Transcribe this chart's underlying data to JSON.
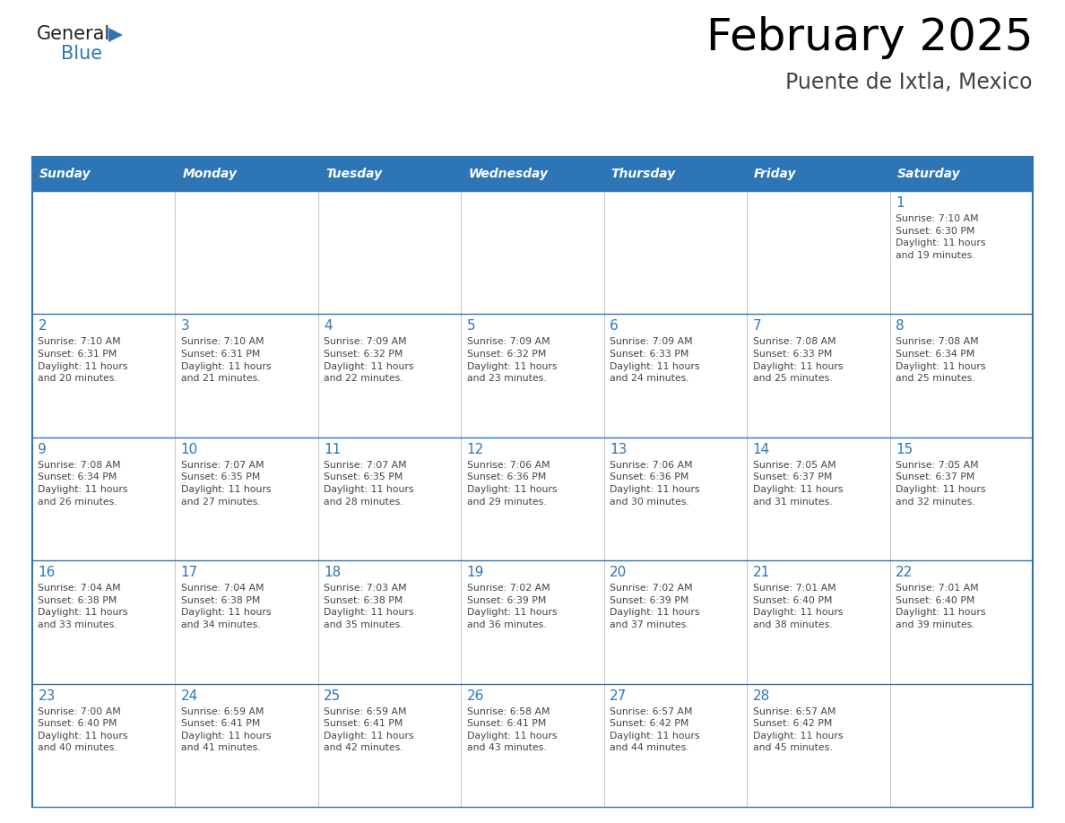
{
  "title": "February 2025",
  "subtitle": "Puente de Ixtla, Mexico",
  "days_of_week": [
    "Sunday",
    "Monday",
    "Tuesday",
    "Wednesday",
    "Thursday",
    "Friday",
    "Saturday"
  ],
  "header_bg": "#2E75B6",
  "header_text": "#FFFFFF",
  "cell_bg": "#FFFFFF",
  "border_color": "#2E75B6",
  "title_color": "#000000",
  "subtitle_color": "#444444",
  "day_number_color": "#2E75B6",
  "cell_text_color": "#444444",
  "logo_general_color": "#222222",
  "logo_blue_color": "#2E75B6",
  "figwidth": 11.88,
  "figheight": 9.18,
  "dpi": 100,
  "weeks": [
    [
      {
        "day": null,
        "sunrise": null,
        "sunset": null,
        "daylight": null
      },
      {
        "day": null,
        "sunrise": null,
        "sunset": null,
        "daylight": null
      },
      {
        "day": null,
        "sunrise": null,
        "sunset": null,
        "daylight": null
      },
      {
        "day": null,
        "sunrise": null,
        "sunset": null,
        "daylight": null
      },
      {
        "day": null,
        "sunrise": null,
        "sunset": null,
        "daylight": null
      },
      {
        "day": null,
        "sunrise": null,
        "sunset": null,
        "daylight": null
      },
      {
        "day": 1,
        "sunrise": "7:10 AM",
        "sunset": "6:30 PM",
        "daylight": "11 hours\nand 19 minutes."
      }
    ],
    [
      {
        "day": 2,
        "sunrise": "7:10 AM",
        "sunset": "6:31 PM",
        "daylight": "11 hours\nand 20 minutes."
      },
      {
        "day": 3,
        "sunrise": "7:10 AM",
        "sunset": "6:31 PM",
        "daylight": "11 hours\nand 21 minutes."
      },
      {
        "day": 4,
        "sunrise": "7:09 AM",
        "sunset": "6:32 PM",
        "daylight": "11 hours\nand 22 minutes."
      },
      {
        "day": 5,
        "sunrise": "7:09 AM",
        "sunset": "6:32 PM",
        "daylight": "11 hours\nand 23 minutes."
      },
      {
        "day": 6,
        "sunrise": "7:09 AM",
        "sunset": "6:33 PM",
        "daylight": "11 hours\nand 24 minutes."
      },
      {
        "day": 7,
        "sunrise": "7:08 AM",
        "sunset": "6:33 PM",
        "daylight": "11 hours\nand 25 minutes."
      },
      {
        "day": 8,
        "sunrise": "7:08 AM",
        "sunset": "6:34 PM",
        "daylight": "11 hours\nand 25 minutes."
      }
    ],
    [
      {
        "day": 9,
        "sunrise": "7:08 AM",
        "sunset": "6:34 PM",
        "daylight": "11 hours\nand 26 minutes."
      },
      {
        "day": 10,
        "sunrise": "7:07 AM",
        "sunset": "6:35 PM",
        "daylight": "11 hours\nand 27 minutes."
      },
      {
        "day": 11,
        "sunrise": "7:07 AM",
        "sunset": "6:35 PM",
        "daylight": "11 hours\nand 28 minutes."
      },
      {
        "day": 12,
        "sunrise": "7:06 AM",
        "sunset": "6:36 PM",
        "daylight": "11 hours\nand 29 minutes."
      },
      {
        "day": 13,
        "sunrise": "7:06 AM",
        "sunset": "6:36 PM",
        "daylight": "11 hours\nand 30 minutes."
      },
      {
        "day": 14,
        "sunrise": "7:05 AM",
        "sunset": "6:37 PM",
        "daylight": "11 hours\nand 31 minutes."
      },
      {
        "day": 15,
        "sunrise": "7:05 AM",
        "sunset": "6:37 PM",
        "daylight": "11 hours\nand 32 minutes."
      }
    ],
    [
      {
        "day": 16,
        "sunrise": "7:04 AM",
        "sunset": "6:38 PM",
        "daylight": "11 hours\nand 33 minutes."
      },
      {
        "day": 17,
        "sunrise": "7:04 AM",
        "sunset": "6:38 PM",
        "daylight": "11 hours\nand 34 minutes."
      },
      {
        "day": 18,
        "sunrise": "7:03 AM",
        "sunset": "6:38 PM",
        "daylight": "11 hours\nand 35 minutes."
      },
      {
        "day": 19,
        "sunrise": "7:02 AM",
        "sunset": "6:39 PM",
        "daylight": "11 hours\nand 36 minutes."
      },
      {
        "day": 20,
        "sunrise": "7:02 AM",
        "sunset": "6:39 PM",
        "daylight": "11 hours\nand 37 minutes."
      },
      {
        "day": 21,
        "sunrise": "7:01 AM",
        "sunset": "6:40 PM",
        "daylight": "11 hours\nand 38 minutes."
      },
      {
        "day": 22,
        "sunrise": "7:01 AM",
        "sunset": "6:40 PM",
        "daylight": "11 hours\nand 39 minutes."
      }
    ],
    [
      {
        "day": 23,
        "sunrise": "7:00 AM",
        "sunset": "6:40 PM",
        "daylight": "11 hours\nand 40 minutes."
      },
      {
        "day": 24,
        "sunrise": "6:59 AM",
        "sunset": "6:41 PM",
        "daylight": "11 hours\nand 41 minutes."
      },
      {
        "day": 25,
        "sunrise": "6:59 AM",
        "sunset": "6:41 PM",
        "daylight": "11 hours\nand 42 minutes."
      },
      {
        "day": 26,
        "sunrise": "6:58 AM",
        "sunset": "6:41 PM",
        "daylight": "11 hours\nand 43 minutes."
      },
      {
        "day": 27,
        "sunrise": "6:57 AM",
        "sunset": "6:42 PM",
        "daylight": "11 hours\nand 44 minutes."
      },
      {
        "day": 28,
        "sunrise": "6:57 AM",
        "sunset": "6:42 PM",
        "daylight": "11 hours\nand 45 minutes."
      },
      {
        "day": null,
        "sunrise": null,
        "sunset": null,
        "daylight": null
      }
    ]
  ]
}
